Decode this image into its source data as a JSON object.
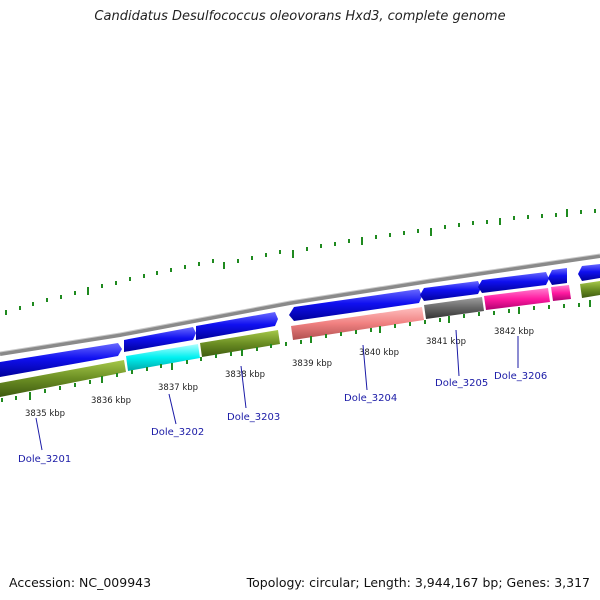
{
  "title": "Candidatus Desulfococcus oleovorans Hxd3, complete genome",
  "footer": {
    "accession": "Accession: NC_009943",
    "topology": "Topology: circular; Length: 3,944,167 bp; Genes: 3,317"
  },
  "colors": {
    "backbone": "#8a8a8a",
    "forward_gene": "#0a0ae6",
    "reverse_default": "#6b8e23",
    "ticks": "#1f8a1f",
    "label": "#1a1aa6"
  },
  "kbp_labels": [
    "3835 kbp",
    "3836 kbp",
    "3837 kbp",
    "3838 kbp",
    "3839 kbp",
    "3840 kbp",
    "3841 kbp",
    "3842 kbp"
  ],
  "gene_labels": [
    "Dole_3201",
    "Dole_3202",
    "Dole_3203",
    "Dole_3204",
    "Dole_3205",
    "Dole_3206"
  ]
}
